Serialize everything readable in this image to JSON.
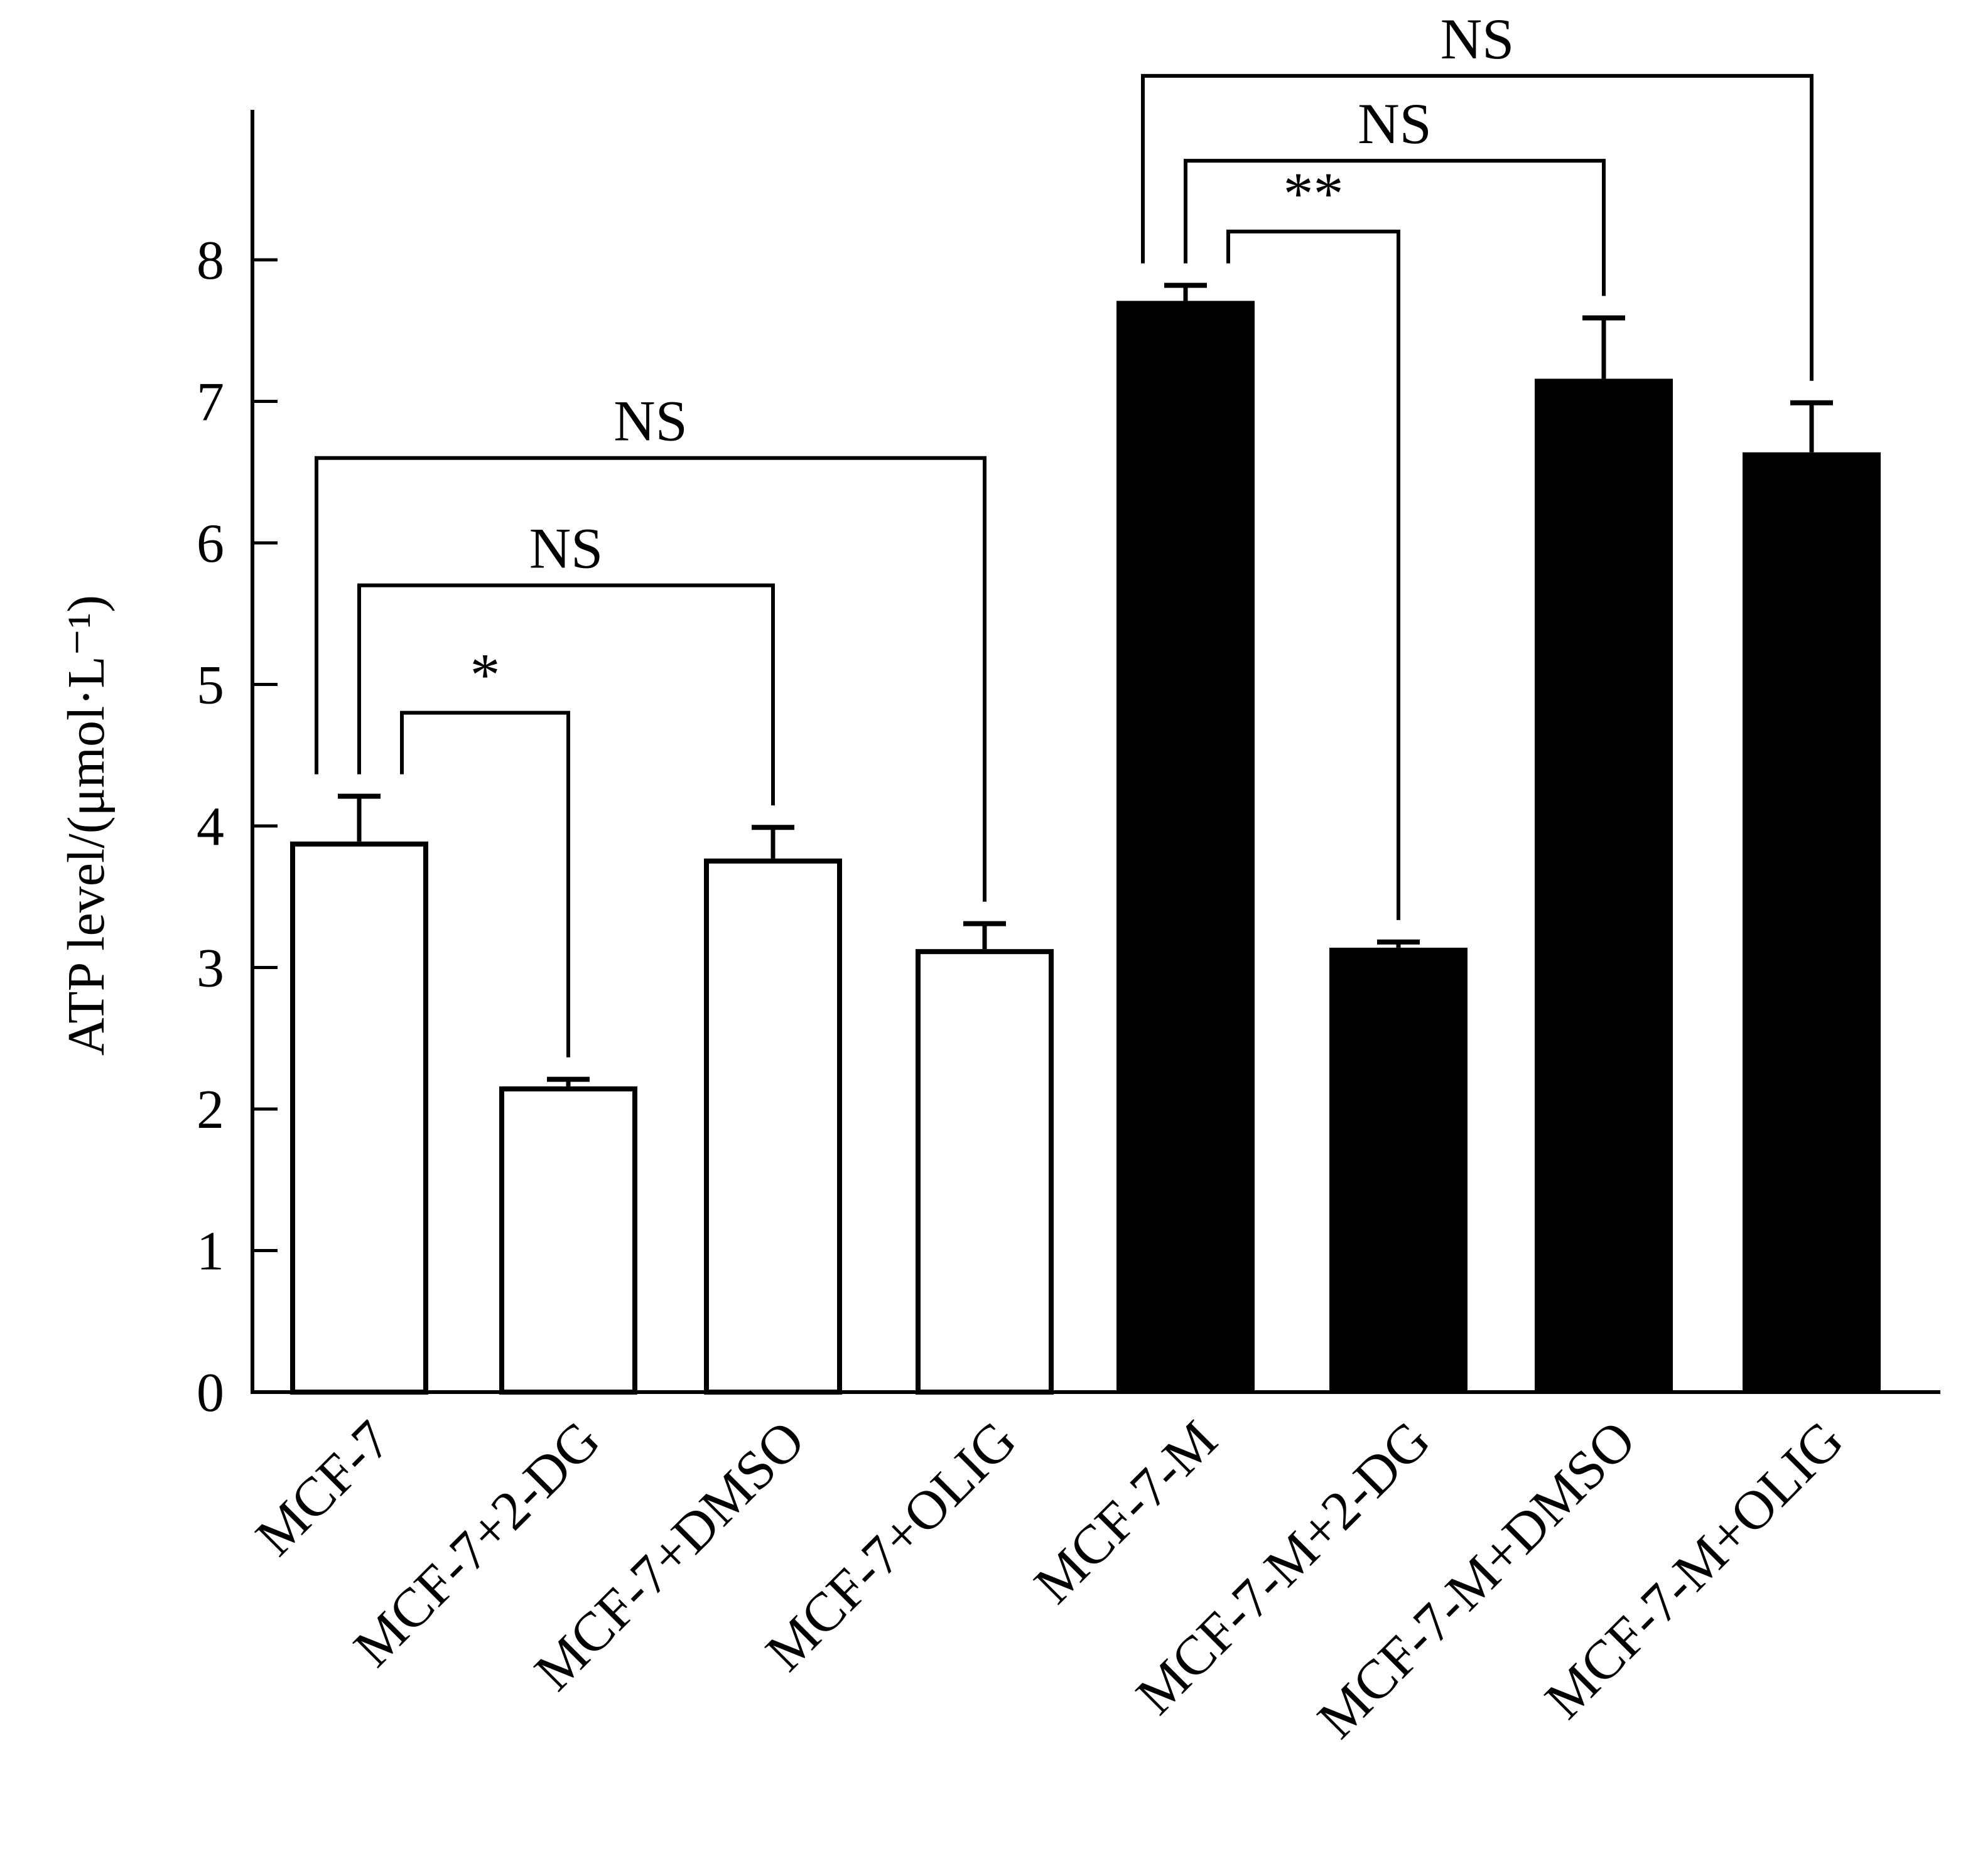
{
  "chart_data": {
    "type": "bar",
    "ylabel": "ATP level/(μmol·L⁻¹)",
    "ylim": [
      0,
      9
    ],
    "yticks": [
      0,
      1,
      2,
      3,
      4,
      5,
      6,
      7,
      8
    ],
    "categories": [
      "MCF-7",
      "MCF-7+2-DG",
      "MCF-7+DMSO",
      "MCF-7+OLIG",
      "MCF-7-M",
      "MCF-7-M+2-DG",
      "MCF-7-M+DMSO",
      "MCF-7-M+OLIG"
    ],
    "values": [
      3.89,
      2.16,
      3.77,
      3.13,
      7.71,
      3.14,
      7.16,
      6.64
    ],
    "errors": [
      0.32,
      0.05,
      0.22,
      0.18,
      0.11,
      0.04,
      0.43,
      0.35
    ],
    "bar_fills": [
      "#ffffff",
      "#ffffff",
      "#ffffff",
      "#ffffff",
      "#000000",
      "#000000",
      "#000000",
      "#000000"
    ],
    "significance": [
      {
        "from": 0,
        "to": 1,
        "label": "*",
        "y": 4.8
      },
      {
        "from": 0,
        "to": 2,
        "label": "NS",
        "y": 5.7
      },
      {
        "from": 0,
        "to": 3,
        "label": "NS",
        "y": 6.6
      },
      {
        "from": 4,
        "to": 5,
        "label": "**",
        "y": 8.2
      },
      {
        "from": 4,
        "to": 6,
        "label": "NS",
        "y": 8.7
      },
      {
        "from": 4,
        "to": 7,
        "label": "NS",
        "y": 9.3
      }
    ]
  }
}
